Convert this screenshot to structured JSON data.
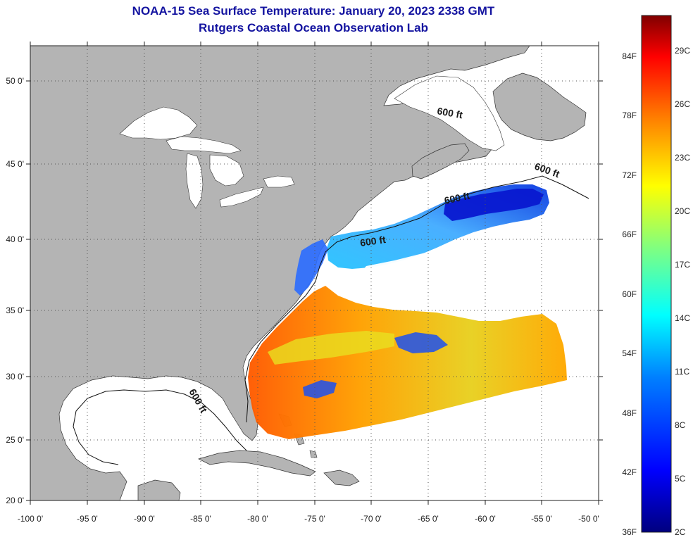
{
  "title": {
    "line1": "NOAA-15 Sea Surface Temperature:  January 20, 2023 2338 GMT",
    "line2": "Rutgers Coastal Ocean Observation Lab"
  },
  "axes": {
    "lat_ticks": [
      "50 0'",
      "45 0'",
      "40 0'",
      "35 0'",
      "30 0'",
      "25 0'",
      "20 0'"
    ],
    "lon_ticks": [
      "-100 0'",
      "-95 0'",
      "-90 0'",
      "-85 0'",
      "-80 0'",
      "-75 0'",
      "-70 0'",
      "-65 0'",
      "-60 0'",
      "-55 0'",
      "-50 0'"
    ]
  },
  "contour_label": "600 ft",
  "colorbar": {
    "fahrenheit": [
      "84F",
      "78F",
      "72F",
      "66F",
      "60F",
      "54F",
      "48F",
      "42F",
      "36F"
    ],
    "celsius": [
      "29C",
      "26C",
      "23C",
      "20C",
      "17C",
      "14C",
      "11C",
      "8C",
      "5C",
      "2C"
    ]
  },
  "colors": {
    "land": "#b4b4b4",
    "ocean": "#ffffff",
    "title": "#1414a0",
    "grid": "#555555"
  }
}
